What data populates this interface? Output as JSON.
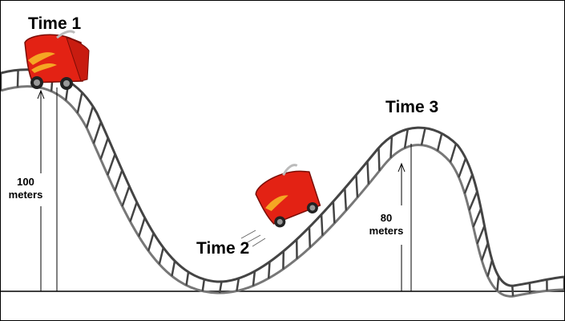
{
  "labels": {
    "time1": "Time 1",
    "time2": "Time 2",
    "time3": "Time 3",
    "height1_value": "100",
    "height1_unit": "meters",
    "height3_value": "80",
    "height3_unit": "meters"
  },
  "colors": {
    "cart_body": "#e32214",
    "cart_flame": "#f5a623",
    "track_rail": "#555555",
    "ground_line": "#000000"
  },
  "icons": {
    "cart": "roller-coaster-cart-icon"
  }
}
